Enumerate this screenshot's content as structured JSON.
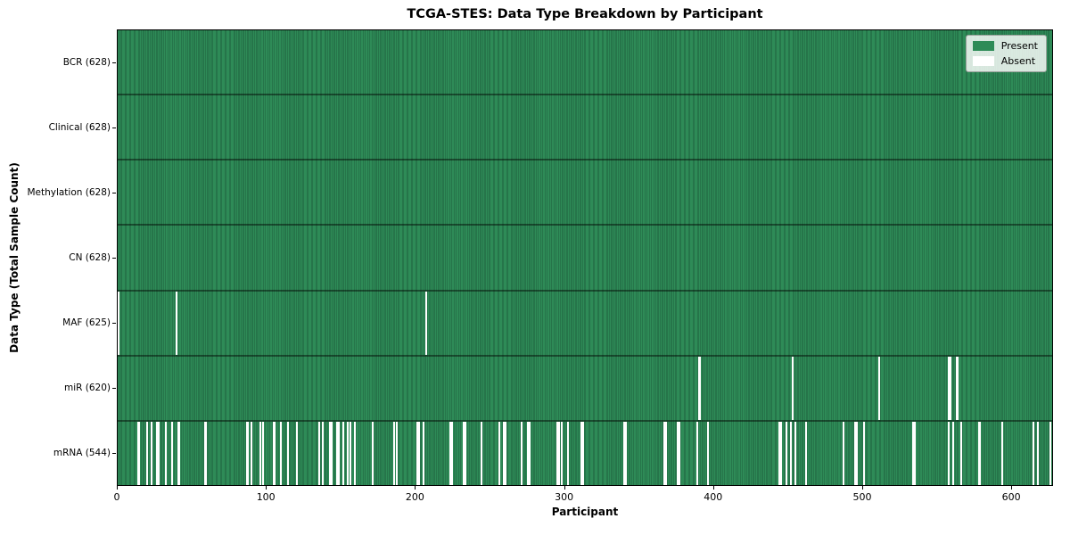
{
  "title": "TCGA-STES: Data Type Breakdown by Participant",
  "xlabel": "Participant",
  "ylabel": "Data Type (Total Sample Count)",
  "legend": {
    "position": "upper right",
    "entries": [
      {
        "label": "Present",
        "color": "#2e8b57"
      },
      {
        "label": "Absent",
        "color": "#ffffff"
      }
    ]
  },
  "colors": {
    "present": "#2e8b57",
    "present_edge": "#1f5f3d",
    "absent": "#ffffff",
    "row_separator": "#000000",
    "axes_border": "#000000",
    "background": "#ffffff"
  },
  "chart_data": {
    "type": "heatmap",
    "n_participants": 628,
    "x_range": [
      0,
      628
    ],
    "x_ticks": [
      0,
      100,
      200,
      300,
      400,
      500,
      600
    ],
    "grid": false,
    "rows": [
      {
        "name": "BCR",
        "label": "BCR (628)",
        "present_count": 628,
        "absent_count": 0,
        "absent_participants": []
      },
      {
        "name": "Clinical",
        "label": "Clinical (628)",
        "present_count": 628,
        "absent_count": 0,
        "absent_participants": []
      },
      {
        "name": "Methylation",
        "label": "Methylation (628)",
        "present_count": 628,
        "absent_count": 0,
        "absent_participants": []
      },
      {
        "name": "CN",
        "label": "CN (628)",
        "present_count": 628,
        "absent_count": 0,
        "absent_participants": []
      },
      {
        "name": "MAF",
        "label": "MAF (625)",
        "present_count": 625,
        "absent_count": 3,
        "absent_participants": [
          0,
          39,
          207
        ]
      },
      {
        "name": "miR",
        "label": "miR (620)",
        "present_count": 620,
        "absent_count": 8,
        "absent_participants": [
          390,
          391,
          453,
          511,
          558,
          559,
          563,
          564
        ]
      },
      {
        "name": "mRNA",
        "label": "mRNA (544)",
        "present_count": 544,
        "absent_count": 84,
        "absent_participants": [
          13,
          14,
          19,
          22,
          26,
          27,
          32,
          36,
          40,
          41,
          58,
          59,
          86,
          87,
          89,
          95,
          97,
          104,
          105,
          109,
          114,
          120,
          135,
          137,
          142,
          143,
          147,
          148,
          151,
          154,
          156,
          159,
          171,
          185,
          187,
          201,
          202,
          205,
          223,
          224,
          232,
          233,
          244,
          256,
          259,
          260,
          271,
          275,
          276,
          295,
          296,
          298,
          302,
          311,
          312,
          340,
          341,
          367,
          368,
          376,
          377,
          389,
          396,
          444,
          445,
          449,
          452,
          455,
          462,
          487,
          495,
          496,
          501,
          534,
          535,
          558,
          561,
          566,
          578,
          579,
          594,
          615,
          618,
          626
        ]
      }
    ]
  }
}
